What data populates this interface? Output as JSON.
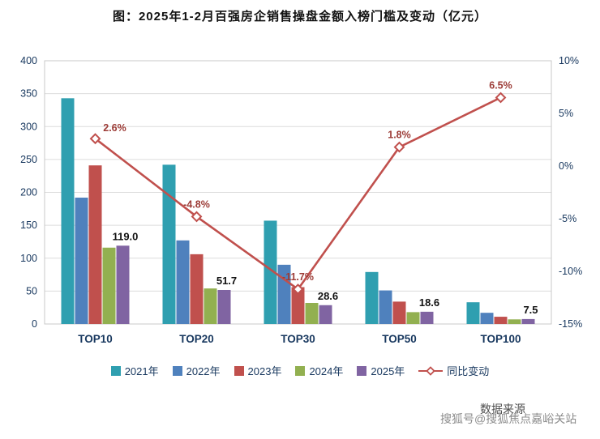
{
  "page": {
    "title": "图：2025年1-2月百强房企销售操盘金额入榜门槛及变动（亿元）"
  },
  "chart_data": {
    "type": "bar+line",
    "title": "图：2025年1-2月百强房企销售操盘金额入榜门槛及变动（亿元）",
    "categories": [
      "TOP10",
      "TOP20",
      "TOP30",
      "TOP50",
      "TOP100"
    ],
    "series": [
      {
        "name": "2021年",
        "color": "#2f9fb0",
        "values": [
          343,
          242,
          157,
          79,
          33
        ]
      },
      {
        "name": "2022年",
        "color": "#4f81bd",
        "values": [
          192,
          127,
          90,
          51,
          17
        ]
      },
      {
        "name": "2023年",
        "color": "#c0504d",
        "values": [
          241,
          106,
          56,
          34,
          11
        ]
      },
      {
        "name": "2024年",
        "color": "#92b050",
        "values": [
          116,
          54,
          32,
          18,
          7
        ]
      },
      {
        "name": "2025年",
        "color": "#8064a2",
        "values": [
          119.0,
          51.7,
          28.6,
          18.6,
          7.5
        ]
      }
    ],
    "bar_labels": [
      "119.0",
      "51.7",
      "28.6",
      "18.6",
      "7.5"
    ],
    "line_series": {
      "name": "同比变动",
      "color": "#c0504d",
      "values": [
        2.6,
        -4.8,
        -11.7,
        1.8,
        6.5
      ],
      "labels": [
        "2.6%",
        "-4.8%",
        "-11.7%",
        "1.8%",
        "6.5%"
      ],
      "label_color": "#9c3b36"
    },
    "left_axis": {
      "min": 0,
      "max": 400,
      "step": 50,
      "ticks": [
        "0",
        "50",
        "100",
        "150",
        "200",
        "250",
        "300",
        "350",
        "400"
      ]
    },
    "right_axis": {
      "min": -15,
      "max": 10,
      "step": 5,
      "suffix": "%",
      "ticks": [
        "-15%",
        "-10%",
        "-5%",
        "0%",
        "5%",
        "10%"
      ]
    },
    "grid": true,
    "legend_position": "bottom"
  },
  "watermark": {
    "source_label": "数据来源",
    "text": "搜狐号@搜狐焦点嘉峪关站"
  }
}
